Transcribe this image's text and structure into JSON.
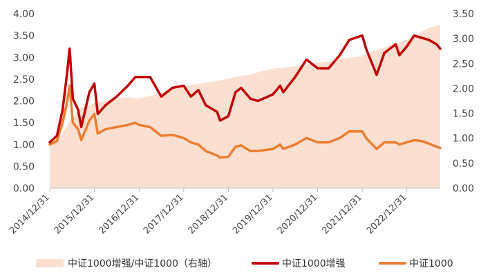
{
  "chart_data": {
    "type": "line",
    "title": "",
    "xlabel": "",
    "ylabel": "",
    "left_axis": {
      "min": 0,
      "max": 4.0,
      "ticks": [
        "0.00",
        "0.50",
        "1.00",
        "1.50",
        "2.00",
        "2.50",
        "3.00",
        "3.50",
        "4.00"
      ]
    },
    "right_axis": {
      "min": 0,
      "max": 3.5,
      "ticks": [
        "0.00",
        "0.50",
        "1.00",
        "1.50",
        "2.00",
        "2.50",
        "3.00",
        "3.50"
      ]
    },
    "x_range": [
      "2014/12/31",
      "2023/09/30"
    ],
    "x_ticks": [
      "2014/12/31",
      "2015/12/31",
      "2016/12/31",
      "2017/12/31",
      "2018/12/31",
      "2019/12/31",
      "2020/12/31",
      "2021/12/31",
      "2022/12/31"
    ],
    "grid": false,
    "legend_position": "bottom",
    "colors": {
      "ratio": "#fbe0d2",
      "enhanced": "#c00000",
      "index": "#ed7d31"
    },
    "series": [
      {
        "name": "中证1000增强/中证1000（右轴）",
        "type": "area",
        "axis": "right",
        "points": [
          [
            "2014/12/31",
            0.92
          ],
          [
            "2015/03/31",
            1.05
          ],
          [
            "2015/05/15",
            1.22
          ],
          [
            "2015/06/15",
            1.35
          ],
          [
            "2015/08/31",
            1.6
          ],
          [
            "2015/12/31",
            1.7
          ],
          [
            "2016/03/31",
            1.75
          ],
          [
            "2016/06/30",
            1.8
          ],
          [
            "2016/09/30",
            1.82
          ],
          [
            "2016/12/31",
            1.8
          ],
          [
            "2017/03/31",
            1.85
          ],
          [
            "2017/06/30",
            1.92
          ],
          [
            "2017/09/30",
            2.0
          ],
          [
            "2017/12/31",
            2.05
          ],
          [
            "2018/03/31",
            2.08
          ],
          [
            "2018/06/30",
            2.12
          ],
          [
            "2018/09/30",
            2.15
          ],
          [
            "2018/12/31",
            2.2
          ],
          [
            "2019/03/31",
            2.25
          ],
          [
            "2019/06/30",
            2.28
          ],
          [
            "2019/09/30",
            2.35
          ],
          [
            "2019/12/31",
            2.4
          ],
          [
            "2020/03/31",
            2.42
          ],
          [
            "2020/06/30",
            2.45
          ],
          [
            "2020/09/30",
            2.48
          ],
          [
            "2020/12/31",
            2.52
          ],
          [
            "2021/03/31",
            2.55
          ],
          [
            "2021/06/30",
            2.6
          ],
          [
            "2021/09/30",
            2.62
          ],
          [
            "2021/12/31",
            2.65
          ],
          [
            "2022/03/31",
            2.75
          ],
          [
            "2022/06/30",
            2.82
          ],
          [
            "2022/09/30",
            2.9
          ],
          [
            "2022/12/31",
            2.98
          ],
          [
            "2023/03/31",
            3.1
          ],
          [
            "2023/06/30",
            3.22
          ],
          [
            "2023/09/30",
            3.28
          ]
        ]
      },
      {
        "name": "中证1000增强",
        "type": "line",
        "axis": "left",
        "points": [
          [
            "2014/12/31",
            1.05
          ],
          [
            "2015/02/28",
            1.2
          ],
          [
            "2015/04/15",
            1.8
          ],
          [
            "2015/05/20",
            2.6
          ],
          [
            "2015/06/12",
            3.2
          ],
          [
            "2015/07/08",
            2.05
          ],
          [
            "2015/08/20",
            1.8
          ],
          [
            "2015/09/15",
            1.4
          ],
          [
            "2015/11/20",
            2.2
          ],
          [
            "2015/12/31",
            2.4
          ],
          [
            "2016/01/28",
            1.7
          ],
          [
            "2016/03/31",
            1.9
          ],
          [
            "2016/06/30",
            2.1
          ],
          [
            "2016/09/30",
            2.35
          ],
          [
            "2016/11/30",
            2.55
          ],
          [
            "2016/12/31",
            2.55
          ],
          [
            "2017/03/31",
            2.55
          ],
          [
            "2017/06/30",
            2.1
          ],
          [
            "2017/09/30",
            2.3
          ],
          [
            "2017/12/31",
            2.35
          ],
          [
            "2018/02/28",
            2.1
          ],
          [
            "2018/04/30",
            2.25
          ],
          [
            "2018/06/30",
            1.9
          ],
          [
            "2018/09/30",
            1.75
          ],
          [
            "2018/10/25",
            1.55
          ],
          [
            "2018/12/31",
            1.65
          ],
          [
            "2019/02/28",
            2.2
          ],
          [
            "2019/04/15",
            2.3
          ],
          [
            "2019/06/30",
            2.05
          ],
          [
            "2019/08/31",
            2.0
          ],
          [
            "2019/12/31",
            2.15
          ],
          [
            "2020/02/28",
            2.35
          ],
          [
            "2020/03/25",
            2.2
          ],
          [
            "2020/06/30",
            2.55
          ],
          [
            "2020/09/30",
            2.95
          ],
          [
            "2020/12/31",
            2.75
          ],
          [
            "2021/03/31",
            2.75
          ],
          [
            "2021/06/30",
            3.05
          ],
          [
            "2021/09/15",
            3.4
          ],
          [
            "2021/12/31",
            3.5
          ],
          [
            "2022/01/31",
            3.2
          ],
          [
            "2022/04/27",
            2.6
          ],
          [
            "2022/06/30",
            3.1
          ],
          [
            "2022/09/30",
            3.3
          ],
          [
            "2022/10/31",
            3.05
          ],
          [
            "2022/12/31",
            3.25
          ],
          [
            "2023/02/28",
            3.5
          ],
          [
            "2023/04/30",
            3.45
          ],
          [
            "2023/06/30",
            3.4
          ],
          [
            "2023/08/31",
            3.3
          ],
          [
            "2023/09/30",
            3.2
          ]
        ]
      },
      {
        "name": "中证1000",
        "type": "line",
        "axis": "left",
        "points": [
          [
            "2014/12/31",
            1.0
          ],
          [
            "2015/02/28",
            1.08
          ],
          [
            "2015/04/15",
            1.5
          ],
          [
            "2015/05/20",
            1.95
          ],
          [
            "2015/06/12",
            2.35
          ],
          [
            "2015/07/08",
            1.5
          ],
          [
            "2015/08/20",
            1.35
          ],
          [
            "2015/09/15",
            1.1
          ],
          [
            "2015/11/20",
            1.55
          ],
          [
            "2015/12/31",
            1.7
          ],
          [
            "2016/01/28",
            1.25
          ],
          [
            "2016/03/31",
            1.35
          ],
          [
            "2016/06/30",
            1.4
          ],
          [
            "2016/09/30",
            1.45
          ],
          [
            "2016/11/30",
            1.5
          ],
          [
            "2016/12/31",
            1.45
          ],
          [
            "2017/03/31",
            1.4
          ],
          [
            "2017/06/30",
            1.2
          ],
          [
            "2017/09/30",
            1.22
          ],
          [
            "2017/12/31",
            1.15
          ],
          [
            "2018/02/28",
            1.05
          ],
          [
            "2018/04/30",
            1.0
          ],
          [
            "2018/06/30",
            0.85
          ],
          [
            "2018/09/30",
            0.75
          ],
          [
            "2018/10/25",
            0.7
          ],
          [
            "2018/12/31",
            0.72
          ],
          [
            "2019/02/28",
            0.95
          ],
          [
            "2019/04/15",
            0.98
          ],
          [
            "2019/06/30",
            0.85
          ],
          [
            "2019/08/31",
            0.85
          ],
          [
            "2019/12/31",
            0.9
          ],
          [
            "2020/02/28",
            1.0
          ],
          [
            "2020/03/25",
            0.9
          ],
          [
            "2020/06/30",
            1.0
          ],
          [
            "2020/09/30",
            1.15
          ],
          [
            "2020/12/31",
            1.05
          ],
          [
            "2021/03/31",
            1.05
          ],
          [
            "2021/06/30",
            1.15
          ],
          [
            "2021/09/15",
            1.3
          ],
          [
            "2021/12/31",
            1.3
          ],
          [
            "2022/01/31",
            1.15
          ],
          [
            "2022/04/27",
            0.9
          ],
          [
            "2022/06/30",
            1.05
          ],
          [
            "2022/09/30",
            1.05
          ],
          [
            "2022/10/31",
            1.0
          ],
          [
            "2022/12/31",
            1.05
          ],
          [
            "2023/02/28",
            1.1
          ],
          [
            "2023/04/30",
            1.08
          ],
          [
            "2023/06/30",
            1.02
          ],
          [
            "2023/08/31",
            0.95
          ],
          [
            "2023/09/30",
            0.92
          ]
        ]
      }
    ]
  }
}
